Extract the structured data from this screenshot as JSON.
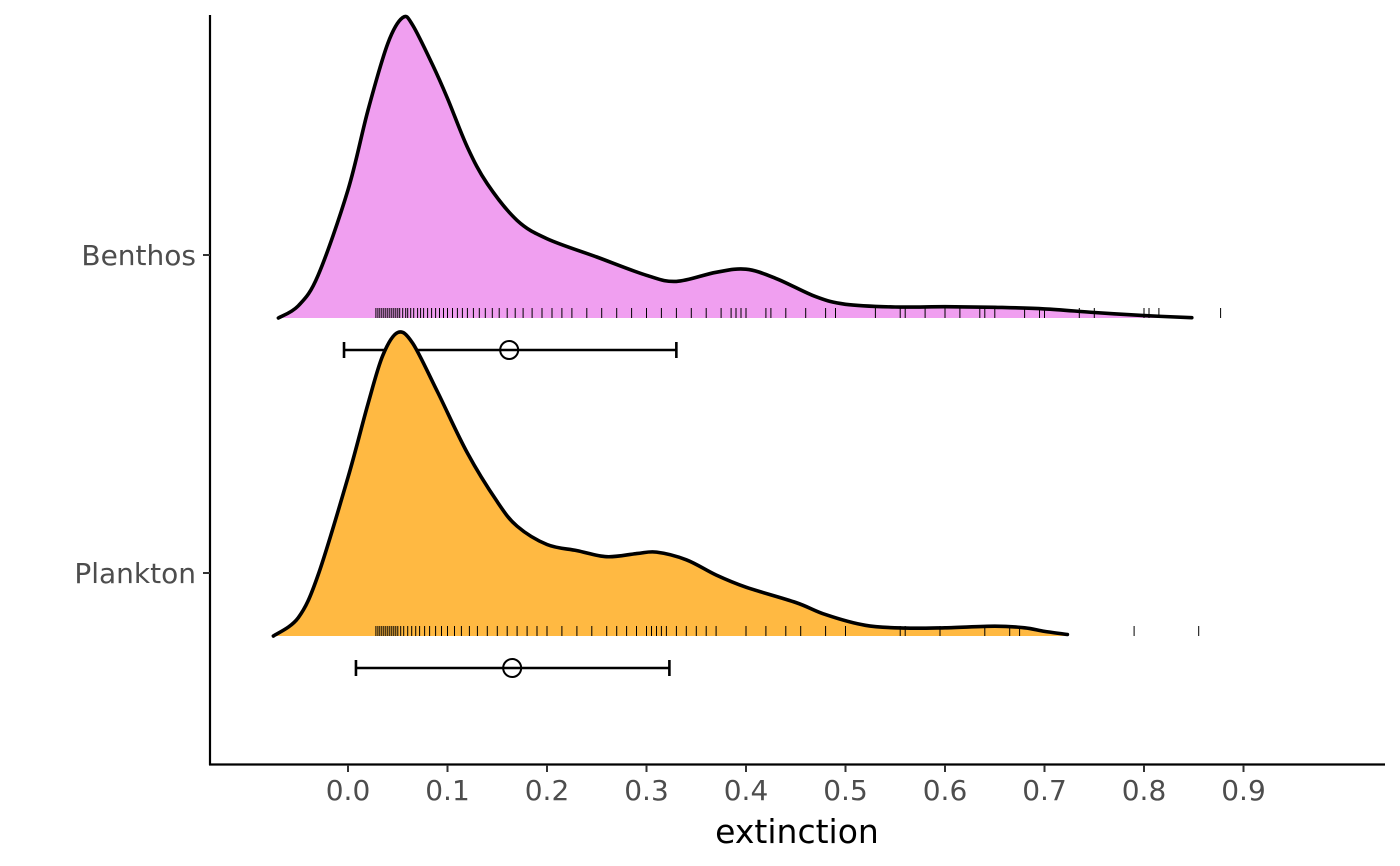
{
  "chart_data": {
    "type": "ridgeline",
    "xlabel": "extinction",
    "ylabel": "",
    "title": "",
    "xlim": [
      -0.14,
      1.04
    ],
    "x_ticks": [
      "0.0",
      "0.1",
      "0.2",
      "0.3",
      "0.4",
      "0.5",
      "0.6",
      "0.7",
      "0.8",
      "0.9"
    ],
    "grid": false,
    "legend": "none",
    "series": [
      {
        "name": "Benthos",
        "color": "#f09ff0",
        "density": [
          [
            -0.07,
            0.0
          ],
          [
            -0.05,
            0.04
          ],
          [
            -0.03,
            0.14
          ],
          [
            0.0,
            0.42
          ],
          [
            0.02,
            0.68
          ],
          [
            0.04,
            0.9
          ],
          [
            0.055,
            0.985
          ],
          [
            0.065,
            0.96
          ],
          [
            0.085,
            0.83
          ],
          [
            0.1,
            0.72
          ],
          [
            0.12,
            0.56
          ],
          [
            0.14,
            0.44
          ],
          [
            0.17,
            0.32
          ],
          [
            0.2,
            0.26
          ],
          [
            0.25,
            0.2
          ],
          [
            0.3,
            0.14
          ],
          [
            0.33,
            0.12
          ],
          [
            0.37,
            0.15
          ],
          [
            0.4,
            0.16
          ],
          [
            0.43,
            0.13
          ],
          [
            0.47,
            0.07
          ],
          [
            0.5,
            0.045
          ],
          [
            0.55,
            0.036
          ],
          [
            0.6,
            0.037
          ],
          [
            0.65,
            0.035
          ],
          [
            0.7,
            0.03
          ],
          [
            0.75,
            0.018
          ],
          [
            0.8,
            0.008
          ],
          [
            0.848,
            0.001
          ]
        ],
        "rug": [
          0.028,
          0.03,
          0.032,
          0.034,
          0.036,
          0.038,
          0.04,
          0.042,
          0.044,
          0.046,
          0.048,
          0.05,
          0.052,
          0.055,
          0.058,
          0.06,
          0.063,
          0.066,
          0.07,
          0.073,
          0.076,
          0.08,
          0.084,
          0.088,
          0.092,
          0.096,
          0.1,
          0.105,
          0.11,
          0.115,
          0.12,
          0.126,
          0.132,
          0.138,
          0.145,
          0.152,
          0.16,
          0.168,
          0.176,
          0.185,
          0.195,
          0.205,
          0.215,
          0.225,
          0.24,
          0.255,
          0.27,
          0.285,
          0.3,
          0.315,
          0.33,
          0.345,
          0.36,
          0.375,
          0.385,
          0.39,
          0.395,
          0.4,
          0.42,
          0.425,
          0.44,
          0.46,
          0.48,
          0.49,
          0.53,
          0.555,
          0.56,
          0.58,
          0.6,
          0.615,
          0.635,
          0.64,
          0.65,
          0.68,
          0.695,
          0.7,
          0.735,
          0.75,
          0.8,
          0.805,
          0.815,
          0.877
        ],
        "interval": {
          "low": -0.004,
          "mean": 0.162,
          "high": 0.33
        }
      },
      {
        "name": "Plankton",
        "color": "#ffb942",
        "density": [
          [
            -0.075,
            0.0
          ],
          [
            -0.05,
            0.06
          ],
          [
            -0.03,
            0.2
          ],
          [
            0.0,
            0.52
          ],
          [
            0.02,
            0.76
          ],
          [
            0.035,
            0.92
          ],
          [
            0.05,
            0.995
          ],
          [
            0.065,
            0.96
          ],
          [
            0.09,
            0.8
          ],
          [
            0.12,
            0.6
          ],
          [
            0.15,
            0.44
          ],
          [
            0.17,
            0.36
          ],
          [
            0.2,
            0.3
          ],
          [
            0.23,
            0.28
          ],
          [
            0.26,
            0.26
          ],
          [
            0.29,
            0.27
          ],
          [
            0.31,
            0.275
          ],
          [
            0.34,
            0.25
          ],
          [
            0.37,
            0.2
          ],
          [
            0.4,
            0.16
          ],
          [
            0.45,
            0.11
          ],
          [
            0.48,
            0.07
          ],
          [
            0.52,
            0.035
          ],
          [
            0.56,
            0.026
          ],
          [
            0.6,
            0.027
          ],
          [
            0.65,
            0.032
          ],
          [
            0.68,
            0.027
          ],
          [
            0.7,
            0.015
          ],
          [
            0.723,
            0.005
          ]
        ],
        "rug": [
          0.028,
          0.03,
          0.032,
          0.034,
          0.036,
          0.038,
          0.04,
          0.042,
          0.044,
          0.046,
          0.048,
          0.05,
          0.053,
          0.056,
          0.06,
          0.064,
          0.068,
          0.072,
          0.077,
          0.082,
          0.088,
          0.094,
          0.1,
          0.107,
          0.114,
          0.122,
          0.13,
          0.14,
          0.15,
          0.16,
          0.17,
          0.18,
          0.19,
          0.2,
          0.215,
          0.23,
          0.245,
          0.26,
          0.27,
          0.28,
          0.29,
          0.3,
          0.305,
          0.31,
          0.315,
          0.32,
          0.33,
          0.34,
          0.35,
          0.36,
          0.37,
          0.4,
          0.42,
          0.44,
          0.455,
          0.48,
          0.5,
          0.555,
          0.56,
          0.595,
          0.64,
          0.665,
          0.675,
          0.79,
          0.855
        ],
        "interval": {
          "low": 0.008,
          "mean": 0.165,
          "high": 0.323
        }
      }
    ]
  }
}
